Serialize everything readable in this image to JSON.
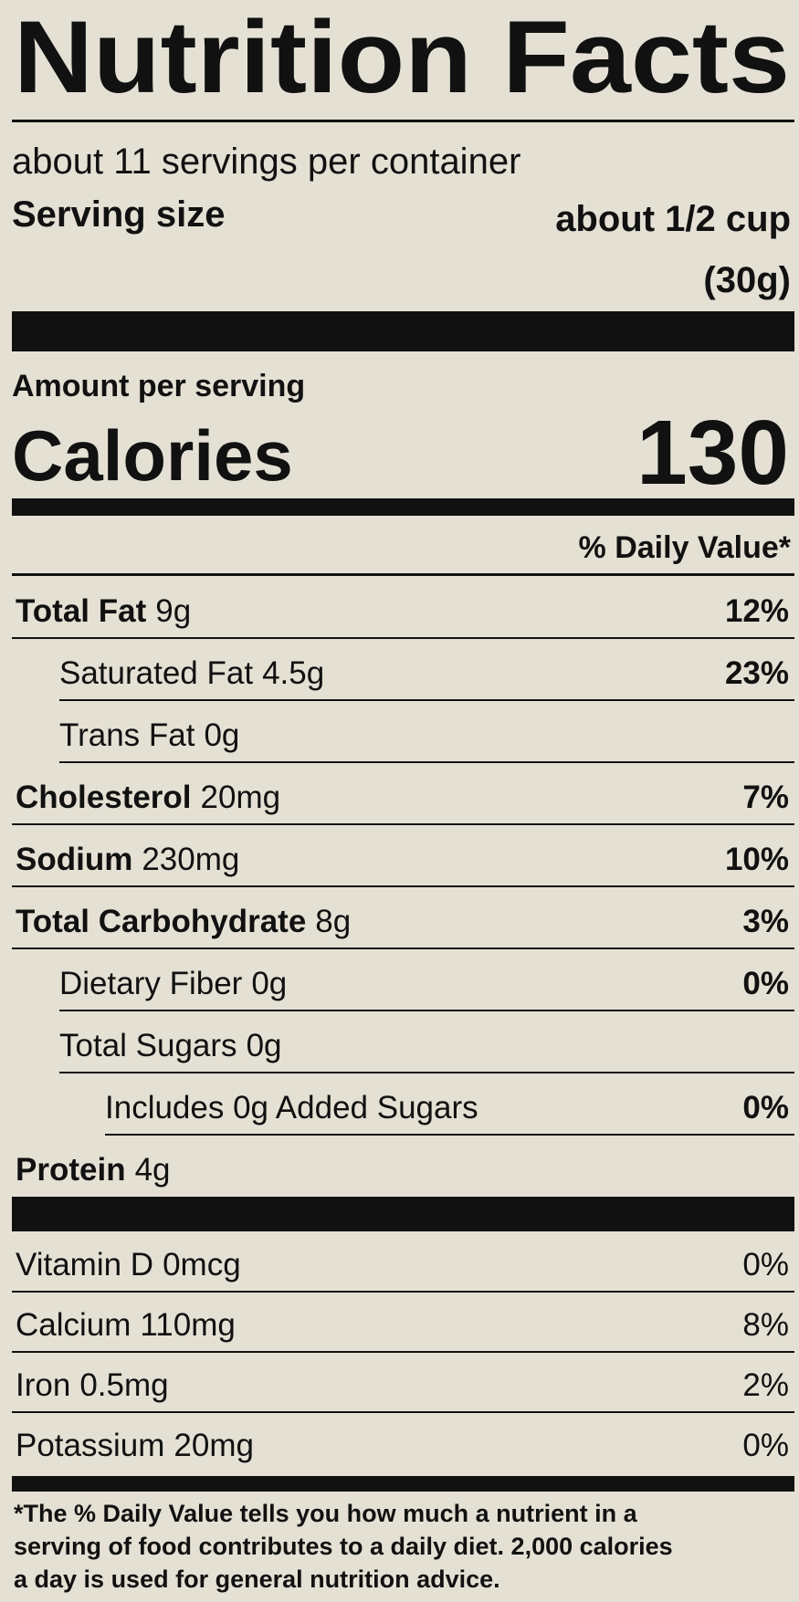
{
  "header": {
    "title": "Nutrition Facts",
    "servings": "about 11 servings per container",
    "serving_size_label": "Serving size",
    "serving_size_value": "about 1/2 cup",
    "serving_size_weight": "(30g)"
  },
  "calories": {
    "amount_label": "Amount per serving",
    "label": "Calories",
    "value": "130"
  },
  "daily_value_header": "% Daily Value*",
  "nutrients": [
    {
      "name": "Total Fat",
      "amount": "9g",
      "dv": "12%",
      "level": 0
    },
    {
      "name": "Saturated Fat",
      "amount": "4.5g",
      "dv": "23%",
      "level": 1
    },
    {
      "name": "Trans Fat",
      "amount": "0g",
      "level": 1
    },
    {
      "name": "Cholesterol",
      "amount": "20mg",
      "dv": "7%",
      "level": 0
    },
    {
      "name": "Sodium",
      "amount": "230mg",
      "dv": "10%",
      "level": 0
    },
    {
      "name": "Total Carbohydrate",
      "amount": "8g",
      "dv": "3%",
      "level": 0
    },
    {
      "name": "Dietary Fiber",
      "amount": "0g",
      "dv": "0%",
      "level": 1
    },
    {
      "name": "Total Sugars",
      "amount": "0g",
      "level": 1
    },
    {
      "name": "Includes 0g Added Sugars",
      "dv": "0%",
      "level": 2
    },
    {
      "name": "Protein",
      "amount": "4g",
      "level": 0
    }
  ],
  "vitamins": [
    {
      "name": "Vitamin D",
      "amount": "0mcg",
      "dv": "0%"
    },
    {
      "name": "Calcium",
      "amount": "110mg",
      "dv": "8%"
    },
    {
      "name": "Iron",
      "amount": "0.5mg",
      "dv": "2%"
    },
    {
      "name": "Potassium",
      "amount": "20mg",
      "dv": "0%"
    }
  ],
  "footnote": [
    "*The % Daily Value tells you how much a nutrient in a",
    "serving of food contributes to a daily diet. 2,000 calories",
    "a day is used for general nutrition advice."
  ]
}
